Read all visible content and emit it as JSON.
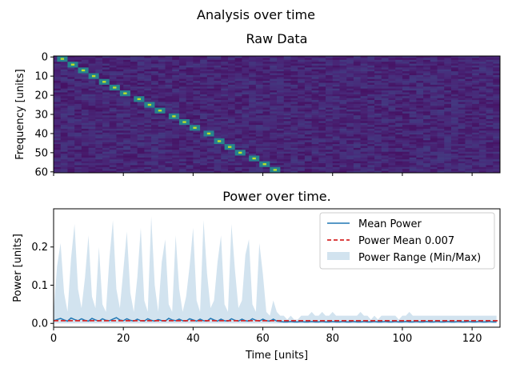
{
  "figure": {
    "suptitle": "Analysis over time"
  },
  "chart_data": [
    {
      "type": "heatmap",
      "title": "Raw Data",
      "xlabel": "",
      "ylabel": "Frequency [units]",
      "xlim": [
        0,
        128
      ],
      "ylim": [
        61,
        0
      ],
      "y_ticks": [
        0,
        10,
        20,
        30,
        40,
        50,
        60
      ],
      "x_ticks": [
        0,
        20,
        40,
        60,
        80,
        100,
        120
      ],
      "x_ticklabels_visible": false,
      "colormap": "viridis",
      "background_value": 0.1,
      "peaks": [
        {
          "t": 2,
          "f": 1
        },
        {
          "t": 5,
          "f": 4
        },
        {
          "t": 8,
          "f": 7
        },
        {
          "t": 11,
          "f": 10
        },
        {
          "t": 14,
          "f": 13
        },
        {
          "t": 17,
          "f": 16
        },
        {
          "t": 20,
          "f": 19
        },
        {
          "t": 24,
          "f": 22
        },
        {
          "t": 27,
          "f": 25
        },
        {
          "t": 30,
          "f": 28
        },
        {
          "t": 34,
          "f": 31
        },
        {
          "t": 37,
          "f": 34
        },
        {
          "t": 40,
          "f": 37
        },
        {
          "t": 44,
          "f": 40
        },
        {
          "t": 47,
          "f": 44
        },
        {
          "t": 50,
          "f": 47
        },
        {
          "t": 53,
          "f": 50
        },
        {
          "t": 57,
          "f": 53
        },
        {
          "t": 60,
          "f": 56
        },
        {
          "t": 63,
          "f": 59
        }
      ]
    },
    {
      "type": "area",
      "title": "Power over time.",
      "xlabel": "Time [units]",
      "ylabel": "Power [units]",
      "xlim": [
        0,
        128
      ],
      "ylim": [
        -0.01,
        0.3
      ],
      "x_ticks": [
        0,
        20,
        40,
        60,
        80,
        100,
        120
      ],
      "y_ticks": [
        0.0,
        0.1,
        0.2
      ],
      "y_ticklabels": [
        "0.0",
        "0.1",
        "0.2"
      ],
      "legend_position": "upper right",
      "colors": {
        "mean": "#1f77b4",
        "mean_line": "#d62728",
        "range": "#a6c8e0"
      },
      "series": [
        {
          "name": "Mean Power",
          "x": [
            0,
            1,
            2,
            3,
            4,
            5,
            6,
            7,
            8,
            9,
            10,
            11,
            12,
            13,
            14,
            15,
            16,
            17,
            18,
            19,
            20,
            21,
            22,
            23,
            24,
            25,
            26,
            27,
            28,
            29,
            30,
            31,
            32,
            33,
            34,
            35,
            36,
            37,
            38,
            39,
            40,
            41,
            42,
            43,
            44,
            45,
            46,
            47,
            48,
            49,
            50,
            51,
            52,
            53,
            54,
            55,
            56,
            57,
            58,
            59,
            60,
            61,
            62,
            63,
            64,
            65,
            66,
            67,
            68,
            69,
            70,
            71,
            72,
            73,
            74,
            75,
            76,
            77,
            78,
            79,
            80,
            81,
            82,
            83,
            84,
            85,
            86,
            87,
            88,
            89,
            90,
            91,
            92,
            93,
            94,
            95,
            96,
            97,
            98,
            99,
            100,
            101,
            102,
            103,
            104,
            105,
            106,
            107,
            108,
            109,
            110,
            111,
            112,
            113,
            114,
            115,
            116,
            117,
            118,
            119,
            120,
            121,
            122,
            123,
            124,
            125,
            126,
            127
          ],
          "values": [
            0.007,
            0.01,
            0.013,
            0.009,
            0.006,
            0.014,
            0.01,
            0.007,
            0.012,
            0.008,
            0.006,
            0.013,
            0.009,
            0.006,
            0.012,
            0.008,
            0.007,
            0.011,
            0.015,
            0.009,
            0.007,
            0.012,
            0.008,
            0.006,
            0.011,
            0.007,
            0.006,
            0.012,
            0.008,
            0.006,
            0.01,
            0.007,
            0.006,
            0.013,
            0.009,
            0.007,
            0.011,
            0.007,
            0.006,
            0.012,
            0.009,
            0.006,
            0.011,
            0.007,
            0.006,
            0.013,
            0.009,
            0.006,
            0.011,
            0.007,
            0.006,
            0.012,
            0.008,
            0.006,
            0.011,
            0.007,
            0.006,
            0.012,
            0.008,
            0.006,
            0.011,
            0.007,
            0.006,
            0.011,
            0.006,
            0.005,
            0.004,
            0.004,
            0.005,
            0.004,
            0.004,
            0.005,
            0.004,
            0.004,
            0.005,
            0.004,
            0.004,
            0.005,
            0.004,
            0.004,
            0.005,
            0.004,
            0.004,
            0.005,
            0.004,
            0.004,
            0.005,
            0.004,
            0.004,
            0.005,
            0.004,
            0.004,
            0.005,
            0.004,
            0.004,
            0.005,
            0.004,
            0.004,
            0.005,
            0.004,
            0.004,
            0.005,
            0.004,
            0.004,
            0.005,
            0.004,
            0.004,
            0.005,
            0.004,
            0.004,
            0.005,
            0.004,
            0.004,
            0.005,
            0.004,
            0.004,
            0.005,
            0.004,
            0.004,
            0.005,
            0.004,
            0.004,
            0.005,
            0.004,
            0.004,
            0.005,
            0.004,
            0.004
          ]
        },
        {
          "name": "Power Mean 0.007",
          "constant": 0.007
        },
        {
          "name": "Power Range (Min/Max)",
          "x": [
            0,
            1,
            2,
            3,
            4,
            5,
            6,
            7,
            8,
            9,
            10,
            11,
            12,
            13,
            14,
            15,
            16,
            17,
            18,
            19,
            20,
            21,
            22,
            23,
            24,
            25,
            26,
            27,
            28,
            29,
            30,
            31,
            32,
            33,
            34,
            35,
            36,
            37,
            38,
            39,
            40,
            41,
            42,
            43,
            44,
            45,
            46,
            47,
            48,
            49,
            50,
            51,
            52,
            53,
            54,
            55,
            56,
            57,
            58,
            59,
            60,
            61,
            62,
            63,
            64,
            65,
            66,
            67,
            68,
            69,
            70,
            71,
            72,
            73,
            74,
            75,
            76,
            77,
            78,
            79,
            80,
            81,
            82,
            83,
            84,
            85,
            86,
            87,
            88,
            89,
            90,
            91,
            92,
            93,
            94,
            95,
            96,
            97,
            98,
            99,
            100,
            101,
            102,
            103,
            104,
            105,
            106,
            107,
            108,
            109,
            110,
            111,
            112,
            113,
            114,
            115,
            116,
            117,
            118,
            119,
            120,
            121,
            122,
            123,
            124,
            125,
            126,
            127
          ],
          "min": [
            0.0,
            0.0,
            0.0,
            0.0,
            0.0,
            0.0,
            0.0,
            0.0,
            0.0,
            0.0,
            0.0,
            0.0,
            0.0,
            0.0,
            0.0,
            0.0,
            0.0,
            0.0,
            0.0,
            0.0,
            0.0,
            0.0,
            0.0,
            0.0,
            0.0,
            0.0,
            0.0,
            0.0,
            0.0,
            0.0,
            0.0,
            0.0,
            0.0,
            0.0,
            0.0,
            0.0,
            0.0,
            0.0,
            0.0,
            0.0,
            0.0,
            0.0,
            0.0,
            0.0,
            0.0,
            0.0,
            0.0,
            0.0,
            0.0,
            0.0,
            0.0,
            0.0,
            0.0,
            0.0,
            0.0,
            0.0,
            0.0,
            0.0,
            0.0,
            0.0,
            0.0,
            0.0,
            0.0,
            0.0,
            0.0,
            0.0,
            0.0,
            0.0,
            0.0,
            0.0,
            0.0,
            0.0,
            0.0,
            0.0,
            0.0,
            0.0,
            0.0,
            0.0,
            0.0,
            0.0,
            0.0,
            0.0,
            0.0,
            0.0,
            0.0,
            0.0,
            0.0,
            0.0,
            0.0,
            0.0,
            0.0,
            0.0,
            0.0,
            0.0,
            0.0,
            0.0,
            0.0,
            0.0,
            0.0,
            0.0,
            0.0,
            0.0,
            0.0,
            0.0,
            0.0,
            0.0,
            0.0,
            0.0,
            0.0,
            0.0,
            0.0,
            0.0,
            0.0,
            0.0,
            0.0,
            0.0,
            0.0,
            0.0,
            0.0,
            0.0,
            0.0,
            0.0,
            0.0,
            0.0,
            0.0,
            0.0,
            0.0,
            0.0
          ],
          "max": [
            0.03,
            0.15,
            0.21,
            0.08,
            0.03,
            0.17,
            0.26,
            0.09,
            0.04,
            0.12,
            0.23,
            0.07,
            0.04,
            0.2,
            0.05,
            0.03,
            0.17,
            0.27,
            0.09,
            0.04,
            0.14,
            0.24,
            0.08,
            0.03,
            0.12,
            0.25,
            0.06,
            0.03,
            0.28,
            0.1,
            0.03,
            0.16,
            0.22,
            0.05,
            0.03,
            0.23,
            0.09,
            0.03,
            0.07,
            0.15,
            0.25,
            0.06,
            0.03,
            0.27,
            0.13,
            0.04,
            0.06,
            0.16,
            0.23,
            0.05,
            0.03,
            0.26,
            0.14,
            0.04,
            0.06,
            0.18,
            0.22,
            0.05,
            0.03,
            0.21,
            0.13,
            0.03,
            0.02,
            0.06,
            0.03,
            0.02,
            0.02,
            0.01,
            0.02,
            0.01,
            0.01,
            0.02,
            0.02,
            0.02,
            0.03,
            0.02,
            0.02,
            0.03,
            0.02,
            0.02,
            0.03,
            0.02,
            0.02,
            0.02,
            0.02,
            0.02,
            0.02,
            0.02,
            0.03,
            0.02,
            0.02,
            0.01,
            0.02,
            0.01,
            0.02,
            0.02,
            0.02,
            0.02,
            0.02,
            0.01,
            0.02,
            0.02,
            0.03,
            0.02,
            0.02,
            0.02,
            0.02,
            0.02,
            0.02,
            0.02,
            0.02,
            0.02,
            0.02,
            0.02,
            0.02,
            0.02,
            0.02,
            0.02,
            0.02,
            0.02,
            0.02,
            0.02,
            0.02,
            0.02,
            0.02,
            0.02,
            0.02,
            0.02
          ]
        }
      ]
    }
  ]
}
